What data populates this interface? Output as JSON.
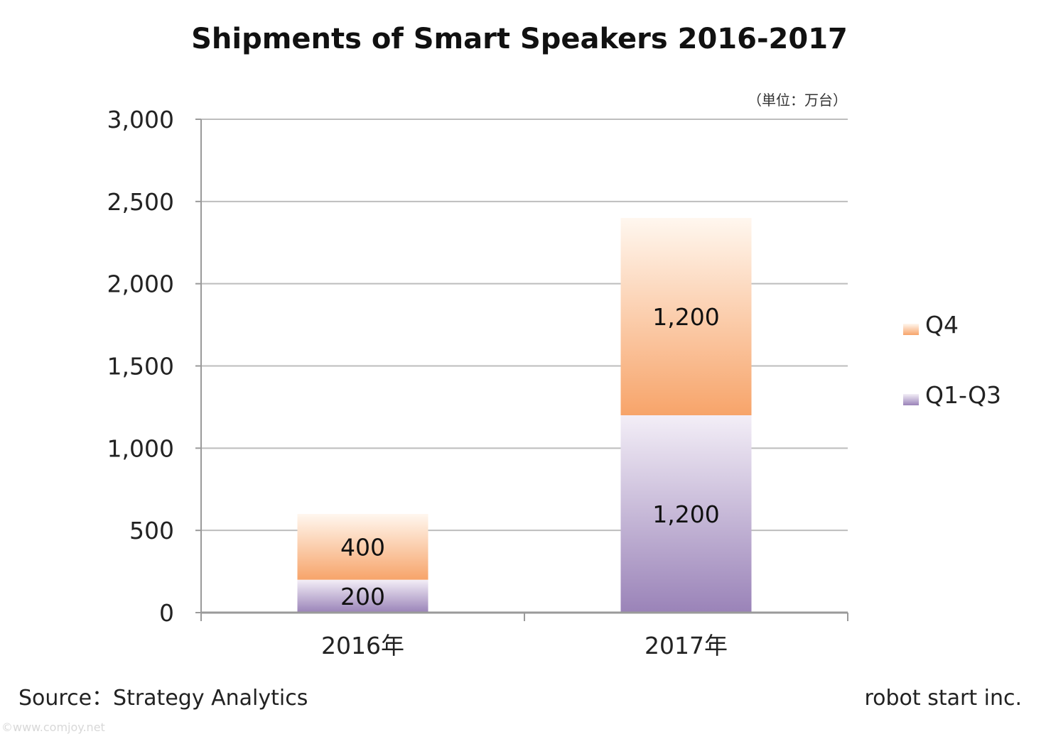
{
  "chart_data": {
    "type": "bar",
    "stacked": true,
    "title": "Shipments of Smart Speakers 2016-2017",
    "unit_note": "（単位：万台）",
    "categories": [
      "2016年",
      "2017年"
    ],
    "series": [
      {
        "name": "Q1-Q3",
        "values": [
          200,
          1200
        ],
        "color_top": "#f3eef7",
        "color_bottom": "#9a83b8"
      },
      {
        "name": "Q4",
        "values": [
          400,
          1200
        ],
        "color_top": "#fff7ef",
        "color_bottom": "#f7a46a"
      }
    ],
    "data_labels": [
      [
        "200",
        "1,200"
      ],
      [
        "400",
        "1,200"
      ]
    ],
    "ylim": [
      0,
      3000
    ],
    "yticks": [
      0,
      500,
      1000,
      1500,
      2000,
      2500,
      3000
    ],
    "ytick_labels": [
      "0",
      "500",
      "1,000",
      "1,500",
      "2,000",
      "2,500",
      "3,000"
    ],
    "grid": true,
    "legend_position": "right",
    "legend_order": [
      "Q4",
      "Q1-Q3"
    ]
  },
  "footer": {
    "source": "Source：Strategy Analytics",
    "credit": "robot start inc.",
    "watermark": "©www.comjoy.net"
  }
}
